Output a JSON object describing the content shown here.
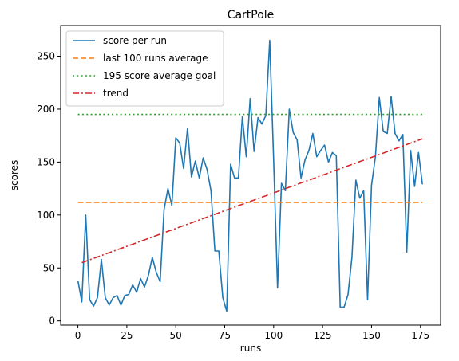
{
  "chart_data": {
    "type": "line",
    "title": "CartPole",
    "xlabel": "runs",
    "ylabel": "scores",
    "xlim": [
      -8.8,
      185.3
    ],
    "ylim": [
      -4,
      279
    ],
    "xticks": [
      0,
      25,
      50,
      75,
      100,
      125,
      150,
      175
    ],
    "yticks": [
      0,
      50,
      100,
      150,
      200,
      250
    ],
    "grid": false,
    "legend_position": "top-left",
    "series": [
      {
        "name": "score per run",
        "style": "solid",
        "color": "#1f77b4",
        "x": [
          0,
          2,
          4,
          6,
          8,
          10,
          12,
          14,
          16,
          18,
          20,
          22,
          24,
          26,
          28,
          30,
          32,
          34,
          36,
          38,
          40,
          42,
          44,
          46,
          48,
          50,
          52,
          54,
          56,
          58,
          60,
          62,
          64,
          66,
          68,
          70,
          72,
          74,
          76,
          78,
          80,
          82,
          84,
          86,
          88,
          90,
          92,
          94,
          96,
          98,
          100,
          102,
          104,
          106,
          108,
          110,
          112,
          114,
          116,
          118,
          120,
          122,
          124,
          126,
          128,
          130,
          132,
          134,
          136,
          138,
          140,
          142,
          144,
          146,
          148,
          150,
          152,
          154,
          156,
          158,
          160,
          162,
          164,
          166,
          168,
          170,
          172,
          174,
          176
        ],
        "y": [
          38,
          18,
          100,
          20,
          14,
          22,
          58,
          22,
          15,
          22,
          24,
          15,
          24,
          25,
          34,
          27,
          40,
          32,
          43,
          60,
          46,
          37,
          105,
          125,
          109,
          173,
          168,
          144,
          182,
          136,
          151,
          135,
          154,
          143,
          123,
          66,
          66,
          22,
          9,
          148,
          135,
          135,
          193,
          155,
          210,
          160,
          192,
          186,
          194,
          265,
          152,
          31,
          130,
          123,
          200,
          178,
          171,
          135,
          152,
          161,
          177,
          155,
          161,
          166,
          150,
          159,
          156,
          13,
          13,
          25,
          60,
          133,
          116,
          123,
          20,
          128,
          155,
          211,
          179,
          177,
          212,
          177,
          170,
          176,
          65,
          161,
          127,
          159,
          129
        ]
      },
      {
        "name": "last 100 runs average",
        "style": "dashed",
        "color": "#ff7f0e",
        "x": [
          0,
          176
        ],
        "y": [
          112,
          112
        ]
      },
      {
        "name": "195 score average goal",
        "style": "dotted",
        "color": "#2ca02c",
        "x": [
          0,
          176
        ],
        "y": [
          195,
          195
        ]
      },
      {
        "name": "trend",
        "style": "dashdot",
        "color": "#d62728",
        "x": [
          2,
          176
        ],
        "y": [
          55,
          172
        ]
      }
    ]
  }
}
